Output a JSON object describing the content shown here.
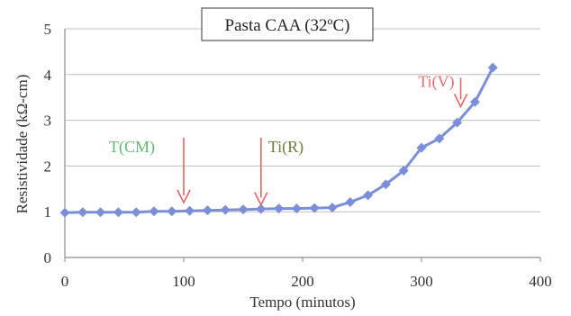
{
  "chart_data": {
    "type": "line",
    "title": "Pasta CAA (32ºC)",
    "xlabel": "Tempo (minutos)",
    "ylabel": "Resistividade (kΩ-cm)",
    "xlim": [
      0,
      400
    ],
    "ylim": [
      0,
      5
    ],
    "x_ticks": [
      "0",
      "100",
      "200",
      "300",
      "400"
    ],
    "y_ticks": [
      "0",
      "1",
      "2",
      "3",
      "4",
      "5"
    ],
    "grid": "horizontal",
    "series": [
      {
        "color": "#7b8fd8",
        "marker": "diamond",
        "x": [
          0,
          15,
          30,
          45,
          60,
          75,
          90,
          105,
          120,
          135,
          150,
          165,
          180,
          195,
          210,
          225,
          240,
          255,
          270,
          285,
          300,
          315,
          330,
          345,
          360
        ],
        "y": [
          0.98,
          0.99,
          0.99,
          0.99,
          0.99,
          1.01,
          1.01,
          1.02,
          1.03,
          1.04,
          1.05,
          1.06,
          1.07,
          1.07,
          1.08,
          1.09,
          1.21,
          1.36,
          1.6,
          1.9,
          2.4,
          2.6,
          2.95,
          3.4,
          4.15
        ]
      }
    ],
    "annotations": [
      {
        "text": "T(CM)",
        "color": "#63b872",
        "x": 100,
        "y_from": 2.62,
        "y_to": 1.2
      },
      {
        "text": "Ti(R)",
        "color": "#6f7f3a",
        "x": 165,
        "y_from": 2.62,
        "y_to": 1.15
      },
      {
        "text": "Ti(V)",
        "color": "#e96a6a",
        "x": 333,
        "y_from": 3.93,
        "y_to": 3.3
      }
    ],
    "colors": {
      "arrow": "#e46565",
      "line": "#7b8fd8",
      "grid": "#bfbfbf"
    }
  }
}
